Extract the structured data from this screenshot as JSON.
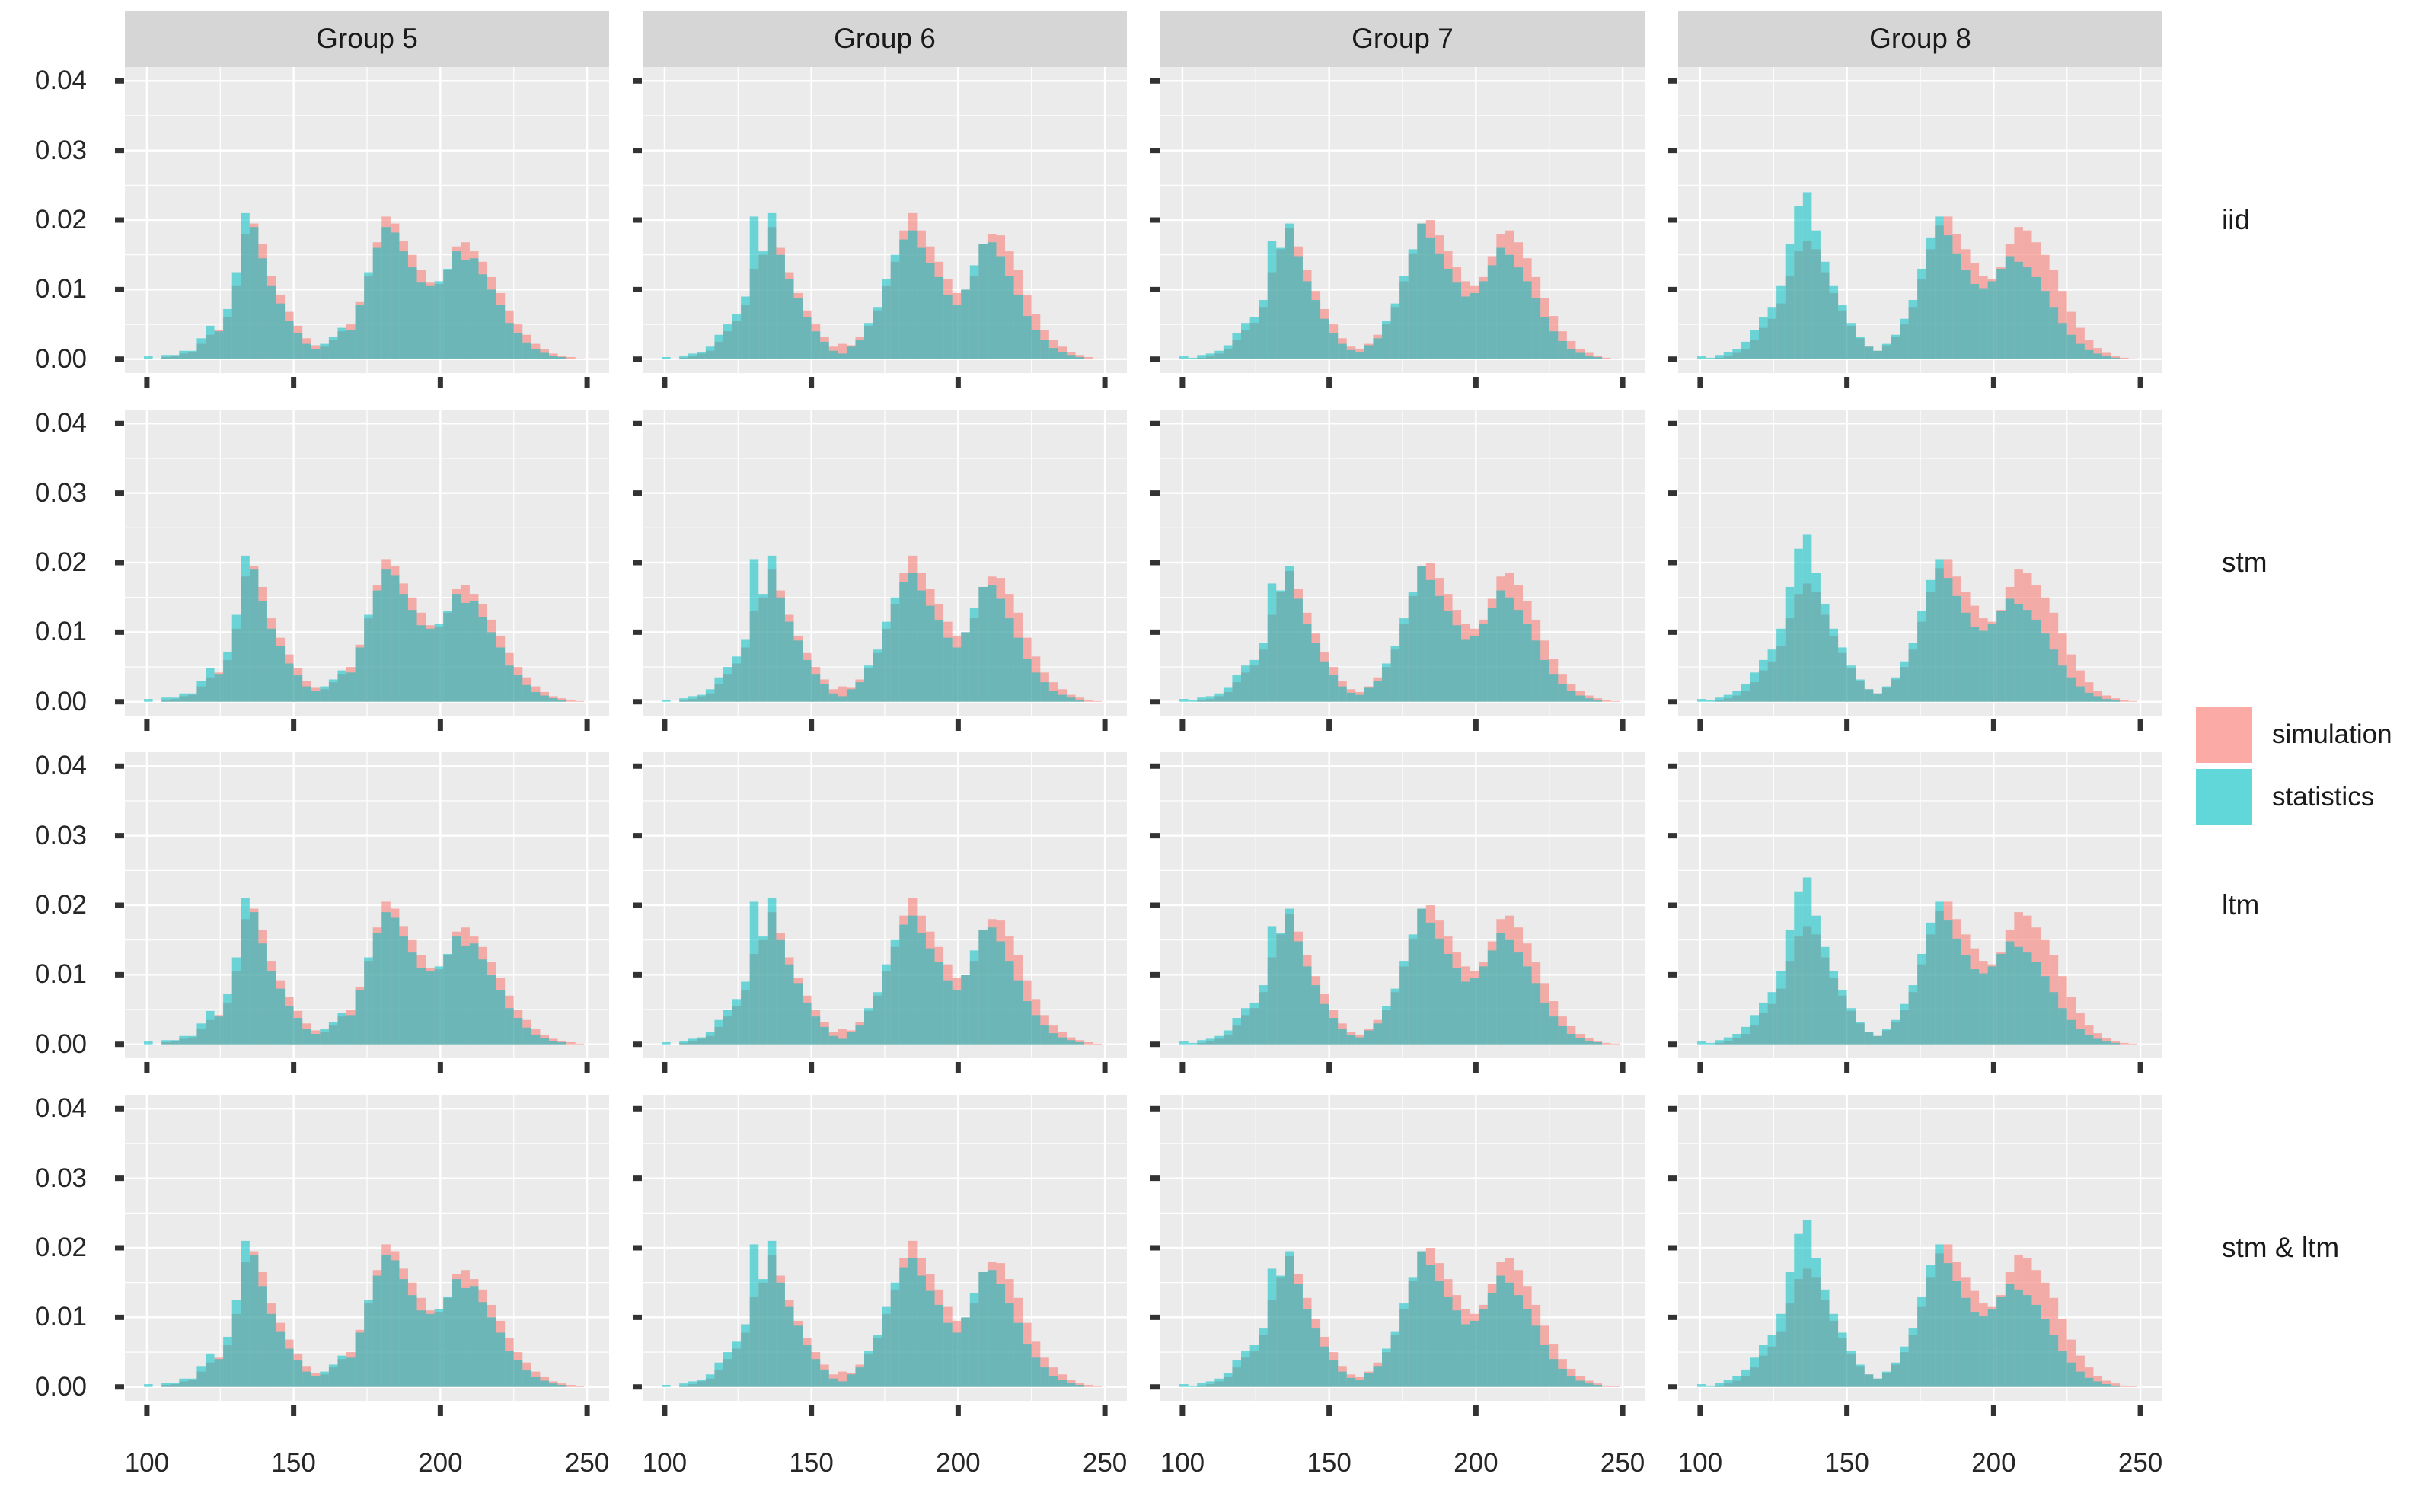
{
  "figure_title": "",
  "legend": {
    "items": [
      {
        "label": "simulation",
        "color": "#F8766D"
      },
      {
        "label": "statistics",
        "color": "#00BFC4"
      }
    ]
  },
  "style": {
    "panel_bg": "#EBEBEB",
    "strip_bg": "#D6D6D6",
    "gridline": "#FFFFFF",
    "tick_color": "#333333",
    "text_color": "#1a1a1a",
    "fill_alpha": 0.55
  },
  "chart_data": {
    "type": "bar",
    "subtype": "overlaid-histogram-facet-grid",
    "facet_columns": [
      "Group 5",
      "Group 6",
      "Group 7",
      "Group 8"
    ],
    "facet_rows": [
      "iid",
      "stm",
      "ltm",
      "stm & ltm"
    ],
    "note": "Each facet row shows the same group distributions; simulation drawn under statistics, both with alpha 0.55",
    "xlabel": "",
    "ylabel": "",
    "x_ticks": [
      100,
      150,
      200,
      250
    ],
    "x_domain": [
      92.5,
      257.5
    ],
    "y_tick_labels": [
      "0.00",
      "0.01",
      "0.02",
      "0.03",
      "0.04"
    ],
    "y_tick_values": [
      0,
      0.01,
      0.02,
      0.03,
      0.04
    ],
    "y_minor_values": [
      0.005,
      0.015,
      0.025,
      0.035
    ],
    "x_minor_values": [
      125,
      175,
      225
    ],
    "y_domain": [
      -0.002,
      0.042
    ],
    "bins": {
      "start": 99,
      "width": 3,
      "count": 50
    },
    "series_order": [
      "simulation",
      "statistics"
    ],
    "groups": {
      "Group 5": {
        "simulation": [
          0,
          0,
          0.0003,
          0.0004,
          0.0008,
          0.001,
          0.0022,
          0.0035,
          0.0042,
          0.006,
          0.0105,
          0.018,
          0.0195,
          0.0165,
          0.012,
          0.0092,
          0.0068,
          0.0048,
          0.003,
          0.002,
          0.0018,
          0.0028,
          0.004,
          0.005,
          0.0082,
          0.012,
          0.0168,
          0.0205,
          0.0195,
          0.017,
          0.015,
          0.0128,
          0.011,
          0.0108,
          0.0128,
          0.0162,
          0.0168,
          0.0155,
          0.014,
          0.0118,
          0.0095,
          0.007,
          0.005,
          0.0035,
          0.0022,
          0.0014,
          0.0008,
          0.0005,
          0.0003,
          0.0001
        ],
        "statistics": [
          0.0004,
          0,
          0.0006,
          0.0006,
          0.0012,
          0.0012,
          0.003,
          0.0048,
          0.004,
          0.0072,
          0.0125,
          0.021,
          0.019,
          0.0145,
          0.0105,
          0.008,
          0.0055,
          0.0038,
          0.0022,
          0.0015,
          0.0022,
          0.0032,
          0.0045,
          0.0042,
          0.0078,
          0.0125,
          0.016,
          0.019,
          0.0182,
          0.0155,
          0.0132,
          0.011,
          0.0105,
          0.0112,
          0.013,
          0.0155,
          0.0142,
          0.0145,
          0.0122,
          0.01,
          0.0078,
          0.0052,
          0.0038,
          0.0024,
          0.0014,
          0.0009,
          0.0005,
          0.0003,
          0,
          0
        ]
      },
      "Group 6": {
        "simulation": [
          0,
          0,
          0.0002,
          0.0004,
          0.0008,
          0.0012,
          0.0025,
          0.004,
          0.0055,
          0.0078,
          0.013,
          0.015,
          0.019,
          0.016,
          0.0125,
          0.0095,
          0.007,
          0.005,
          0.0032,
          0.0018,
          0.0022,
          0.002,
          0.0032,
          0.0048,
          0.007,
          0.0105,
          0.014,
          0.0185,
          0.021,
          0.0185,
          0.0162,
          0.014,
          0.0115,
          0.0095,
          0.01,
          0.012,
          0.0165,
          0.018,
          0.0178,
          0.0155,
          0.0128,
          0.0092,
          0.0065,
          0.0042,
          0.0028,
          0.0018,
          0.001,
          0.0006,
          0.0003,
          0.0001
        ],
        "statistics": [
          0.0003,
          0,
          0.0005,
          0.0008,
          0.001,
          0.0018,
          0.0035,
          0.005,
          0.0065,
          0.009,
          0.0205,
          0.0155,
          0.021,
          0.015,
          0.0115,
          0.0088,
          0.006,
          0.004,
          0.0025,
          0.0012,
          0.0008,
          0.0018,
          0.0028,
          0.0052,
          0.0075,
          0.0115,
          0.015,
          0.0172,
          0.0185,
          0.016,
          0.0138,
          0.0118,
          0.0092,
          0.0078,
          0.01,
          0.0135,
          0.0165,
          0.0168,
          0.0148,
          0.012,
          0.0092,
          0.0062,
          0.0042,
          0.0028,
          0.0016,
          0.001,
          0.0006,
          0.0003,
          0,
          0
        ]
      },
      "Group 7": {
        "simulation": [
          0,
          0,
          0.0002,
          0.0004,
          0.0008,
          0.0014,
          0.0028,
          0.0042,
          0.0052,
          0.0075,
          0.0125,
          0.0158,
          0.0188,
          0.0162,
          0.0128,
          0.0098,
          0.0072,
          0.005,
          0.003,
          0.0018,
          0.0014,
          0.0022,
          0.0035,
          0.005,
          0.0075,
          0.0112,
          0.0152,
          0.0195,
          0.02,
          0.0178,
          0.0155,
          0.0132,
          0.0112,
          0.0105,
          0.0118,
          0.0148,
          0.018,
          0.0185,
          0.0168,
          0.0145,
          0.0118,
          0.0088,
          0.0062,
          0.004,
          0.0026,
          0.0015,
          0.0009,
          0.0005,
          0.0002,
          0.0001
        ],
        "statistics": [
          0.0004,
          0.0002,
          0.0006,
          0.0008,
          0.0012,
          0.002,
          0.0038,
          0.0052,
          0.006,
          0.0085,
          0.017,
          0.016,
          0.0195,
          0.0148,
          0.0112,
          0.0085,
          0.0058,
          0.0038,
          0.0022,
          0.0013,
          0.001,
          0.002,
          0.003,
          0.0055,
          0.008,
          0.012,
          0.0158,
          0.0195,
          0.0175,
          0.0152,
          0.013,
          0.011,
          0.009,
          0.0095,
          0.0112,
          0.0135,
          0.016,
          0.015,
          0.0132,
          0.0112,
          0.0088,
          0.006,
          0.004,
          0.0026,
          0.0015,
          0.0009,
          0.0005,
          0.0003,
          0,
          0
        ]
      },
      "Group 8": {
        "simulation": [
          0,
          0,
          0.0002,
          0.0005,
          0.0009,
          0.0015,
          0.0028,
          0.0045,
          0.0058,
          0.008,
          0.012,
          0.0155,
          0.017,
          0.0158,
          0.0125,
          0.0095,
          0.007,
          0.0048,
          0.003,
          0.0018,
          0.0012,
          0.002,
          0.0032,
          0.005,
          0.0075,
          0.0115,
          0.0158,
          0.0192,
          0.0205,
          0.018,
          0.0158,
          0.0138,
          0.012,
          0.0115,
          0.0132,
          0.0165,
          0.019,
          0.0185,
          0.0168,
          0.015,
          0.0128,
          0.0098,
          0.0068,
          0.0045,
          0.0028,
          0.0016,
          0.0009,
          0.0005,
          0.0002,
          0.0001
        ],
        "statistics": [
          0.0004,
          0.0002,
          0.0006,
          0.001,
          0.0015,
          0.0025,
          0.0042,
          0.006,
          0.0075,
          0.0105,
          0.0165,
          0.022,
          0.024,
          0.0185,
          0.014,
          0.0105,
          0.0078,
          0.0052,
          0.0032,
          0.0018,
          0.0012,
          0.0022,
          0.0035,
          0.0058,
          0.0085,
          0.013,
          0.0175,
          0.0205,
          0.0178,
          0.0152,
          0.0128,
          0.0108,
          0.0102,
          0.0112,
          0.013,
          0.0148,
          0.014,
          0.0132,
          0.0118,
          0.0098,
          0.0075,
          0.0052,
          0.0035,
          0.0022,
          0.0013,
          0.0008,
          0.0004,
          0.0002,
          0,
          0
        ]
      }
    }
  }
}
